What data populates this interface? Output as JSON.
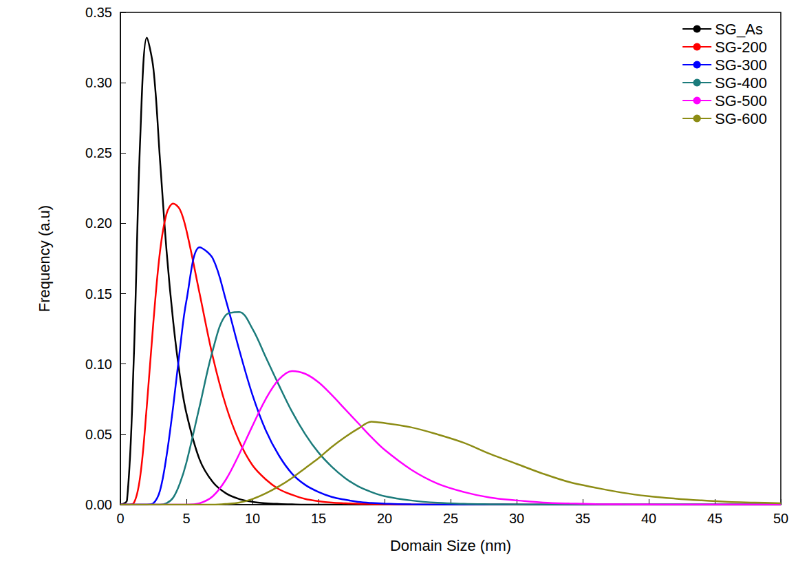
{
  "chart_data": {
    "type": "line",
    "x_label": "Domain Size (nm)",
    "y_label": "Frequency (a.u)",
    "x": [
      0,
      0.5,
      1,
      1.5,
      2,
      2.5,
      3,
      3.5,
      4,
      4.5,
      5,
      6,
      7,
      8,
      9,
      10,
      11,
      12,
      13,
      14,
      15,
      16,
      17,
      18,
      19,
      20,
      22,
      24,
      26,
      28,
      30,
      32,
      34,
      36,
      38,
      40,
      42,
      44,
      46,
      48,
      50
    ],
    "series": [
      {
        "name": "SG_As",
        "color": "#000000",
        "values": [
          0,
          0.003,
          0.1,
          0.26,
          0.332,
          0.31,
          0.245,
          0.18,
          0.13,
          0.092,
          0.065,
          0.032,
          0.016,
          0.008,
          0.004,
          0.002,
          0.001,
          0.0005,
          0.0002,
          0,
          0,
          0,
          0,
          0,
          0,
          0,
          0,
          0,
          0,
          0,
          0,
          0,
          0,
          0,
          0,
          0,
          0,
          0,
          0,
          0,
          0
        ]
      },
      {
        "name": "SG-200",
        "color": "#ff0000",
        "values": [
          0,
          0,
          0.001,
          0.02,
          0.07,
          0.13,
          0.18,
          0.207,
          0.214,
          0.21,
          0.195,
          0.15,
          0.105,
          0.07,
          0.045,
          0.028,
          0.018,
          0.011,
          0.007,
          0.004,
          0.0025,
          0.0015,
          0.001,
          0.0006,
          0.0004,
          0.0002,
          0,
          0,
          0,
          0,
          0,
          0,
          0,
          0,
          0,
          0,
          0,
          0,
          0,
          0,
          0
        ]
      },
      {
        "name": "SG-300",
        "color": "#0000ff",
        "values": [
          0,
          0,
          0,
          0,
          0,
          0.001,
          0.01,
          0.035,
          0.07,
          0.11,
          0.145,
          0.183,
          0.175,
          0.145,
          0.11,
          0.078,
          0.053,
          0.035,
          0.022,
          0.014,
          0.009,
          0.0055,
          0.0035,
          0.002,
          0.0012,
          0.0007,
          0.0002,
          0,
          0,
          0,
          0,
          0,
          0,
          0,
          0,
          0,
          0,
          0,
          0,
          0,
          0
        ]
      },
      {
        "name": "SG-400",
        "color": "#1b7b7b",
        "values": [
          0,
          0,
          0,
          0,
          0,
          0,
          0,
          0.001,
          0.005,
          0.015,
          0.03,
          0.07,
          0.11,
          0.135,
          0.137,
          0.125,
          0.105,
          0.085,
          0.066,
          0.05,
          0.037,
          0.027,
          0.019,
          0.013,
          0.009,
          0.006,
          0.003,
          0.0013,
          0.0006,
          0.0003,
          0.0001,
          0,
          0,
          0,
          0,
          0,
          0,
          0,
          0,
          0,
          0
        ]
      },
      {
        "name": "SG-500",
        "color": "#ff00ff",
        "values": [
          0,
          0,
          0,
          0,
          0,
          0,
          0,
          0,
          0,
          0,
          0,
          0.001,
          0.006,
          0.018,
          0.036,
          0.056,
          0.075,
          0.089,
          0.095,
          0.093,
          0.087,
          0.078,
          0.068,
          0.058,
          0.048,
          0.039,
          0.025,
          0.015,
          0.009,
          0.005,
          0.003,
          0.0015,
          0.0008,
          0.0004,
          0.0002,
          0.0001,
          0,
          0,
          0,
          0,
          0
        ]
      },
      {
        "name": "SG-600",
        "color": "#8c8c14",
        "values": [
          0,
          0,
          0,
          0,
          0,
          0,
          0,
          0,
          0,
          0,
          0,
          0,
          0,
          0.0005,
          0.0015,
          0.004,
          0.008,
          0.013,
          0.019,
          0.026,
          0.033,
          0.041,
          0.048,
          0.054,
          0.059,
          0.058,
          0.055,
          0.05,
          0.044,
          0.036,
          0.029,
          0.022,
          0.016,
          0.012,
          0.0085,
          0.006,
          0.0043,
          0.003,
          0.002,
          0.0015,
          0.001
        ]
      }
    ],
    "xlim": [
      0,
      50
    ],
    "xticks": [
      0,
      5,
      10,
      15,
      20,
      25,
      30,
      35,
      40,
      45,
      50
    ],
    "ylim": [
      0,
      0.35
    ],
    "yticks": [
      {
        "value": 0,
        "label": "0.00"
      },
      {
        "value": 0.05,
        "label": "0.05"
      },
      {
        "value": 0.1,
        "label": "0.10"
      },
      {
        "value": 0.15,
        "label": "0.15"
      },
      {
        "value": 0.2,
        "label": "0.20"
      },
      {
        "value": 0.25,
        "label": "0.25"
      },
      {
        "value": 0.3,
        "label": "0.30"
      },
      {
        "value": 0.35,
        "label": "0.35"
      }
    ],
    "grid": false,
    "legend": "top-right"
  }
}
